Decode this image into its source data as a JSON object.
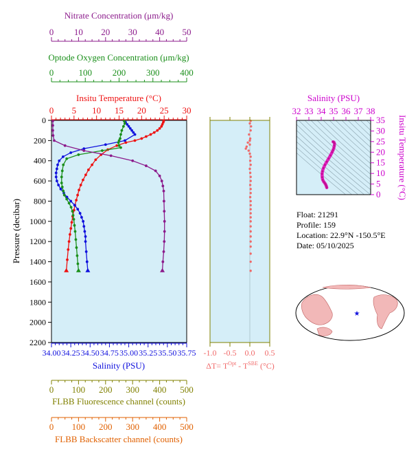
{
  "colors": {
    "nitrate": "#8b1a8b",
    "oxygen": "#1a8f1a",
    "temperature": "#ee1111",
    "salinity": "#1010dd",
    "fluorescence": "#808000",
    "backscatter": "#e06000",
    "delta_t": "#f06a6a",
    "ts_trace": "#e020c0",
    "ts_axis": "#cc00cc",
    "panel_bg": "#d5eef8",
    "map_land": "#f2b8b8"
  },
  "info": {
    "float": "Float:  21291",
    "profile": "Profile:  159",
    "location": "Location:  22.9°N  -150.5°E",
    "date": "Date:  05/10/2025"
  },
  "chart_data": [
    {
      "type": "line",
      "panel": "main profile",
      "ylabel": "Pressure (decibar)",
      "ylim": [
        2200,
        0
      ],
      "yticks": [
        0,
        200,
        400,
        600,
        800,
        1000,
        1200,
        1400,
        1600,
        1800,
        2000,
        2200
      ],
      "axes": {
        "temperature": {
          "label": "Insitu Temperature (°C)",
          "range": [
            0,
            30
          ],
          "ticks": [
            0,
            5,
            10,
            15,
            20,
            25,
            30
          ]
        },
        "salinity": {
          "label": "Salinity (PSU)",
          "range": [
            34.0,
            35.75
          ],
          "ticks": [
            "34.00",
            "34.25",
            "34.50",
            "34.75",
            "35.00",
            "35.25",
            "35.50",
            "35.75"
          ]
        },
        "oxygen": {
          "label": "Optode Oxygen Concentration (μm/kg)",
          "range": [
            0,
            400
          ],
          "ticks": [
            0,
            100,
            200,
            300,
            400
          ]
        },
        "nitrate": {
          "label": "Nitrate Concentration (μm/kg)",
          "range": [
            0,
            50
          ],
          "ticks": [
            0,
            10,
            20,
            30,
            40,
            50
          ]
        },
        "fluorescence": {
          "label": "FLBB Fluorescence channel (counts)",
          "range": [
            0,
            500
          ],
          "ticks": [
            0,
            100,
            200,
            300,
            400,
            500
          ]
        },
        "backscatter": {
          "label": "FLBB Backscatter channel (counts)",
          "range": [
            0,
            500
          ],
          "ticks": [
            0,
            100,
            200,
            300,
            400,
            500
          ]
        }
      },
      "series": [
        {
          "name": "temperature",
          "axis": "temperature",
          "x": [
            24.9,
            24.8,
            24.6,
            24.4,
            24.0,
            23.5,
            22.8,
            22.0,
            21.0,
            20.0,
            18.5,
            16.5,
            14.5,
            12.5,
            11.0,
            9.8,
            9.0,
            8.2,
            7.6,
            7.0,
            6.5,
            6.1,
            5.8,
            5.5,
            5.2,
            5.0,
            4.7,
            4.5,
            4.3,
            4.1,
            3.9,
            3.7,
            3.5,
            3.3
          ],
          "y": [
            5,
            20,
            40,
            60,
            80,
            100,
            120,
            140,
            160,
            180,
            200,
            220,
            250,
            290,
            340,
            390,
            440,
            490,
            540,
            590,
            640,
            690,
            740,
            790,
            840,
            890,
            950,
            1010,
            1070,
            1130,
            1200,
            1280,
            1380,
            1490
          ]
        },
        {
          "name": "salinity",
          "axis": "salinity",
          "x": [
            34.94,
            34.96,
            34.98,
            35.0,
            35.02,
            35.04,
            35.06,
            35.08,
            34.95,
            34.7,
            34.42,
            34.25,
            34.15,
            34.1,
            34.08,
            34.07,
            34.06,
            34.06,
            34.07,
            34.09,
            34.12,
            34.16,
            34.2,
            34.25,
            34.3,
            34.34,
            34.37,
            34.39,
            34.41,
            34.42,
            34.43,
            34.44,
            34.44,
            34.45,
            34.46,
            34.47
          ],
          "y": [
            5,
            20,
            40,
            60,
            80,
            100,
            120,
            140,
            200,
            240,
            280,
            320,
            360,
            400,
            440,
            480,
            520,
            560,
            600,
            640,
            680,
            720,
            760,
            800,
            840,
            880,
            920,
            960,
            1000,
            1050,
            1100,
            1150,
            1200,
            1300,
            1400,
            1490
          ]
        },
        {
          "name": "oxygen",
          "axis": "oxygen",
          "x": [
            215,
            217,
            213,
            208,
            205,
            203,
            200,
            198,
            200,
            205,
            150,
            80,
            45,
            35,
            32,
            30,
            30,
            32,
            35,
            38,
            45,
            52,
            58,
            62,
            64,
            66,
            68,
            70,
            72,
            74,
            76,
            78,
            80
          ],
          "y": [
            5,
            30,
            60,
            100,
            140,
            180,
            200,
            220,
            250,
            270,
            300,
            340,
            380,
            440,
            500,
            560,
            620,
            660,
            700,
            740,
            780,
            820,
            860,
            900,
            940,
            980,
            1040,
            1100,
            1180,
            1260,
            1340,
            1420,
            1490
          ]
        },
        {
          "name": "nitrate",
          "axis": "nitrate",
          "x": [
            0.5,
            0.5,
            0.5,
            0.6,
            1.0,
            5.0,
            12.0,
            22.0,
            30.0,
            35.0,
            38.5,
            40.0,
            40.8,
            41.2,
            41.5,
            41.6,
            41.7,
            41.8,
            41.8,
            41.7,
            41.5,
            41.2,
            41.0
          ],
          "y": [
            5,
            50,
            100,
            150,
            200,
            250,
            300,
            350,
            400,
            450,
            500,
            550,
            600,
            650,
            700,
            800,
            900,
            1000,
            1100,
            1200,
            1300,
            1400,
            1490
          ]
        }
      ]
    },
    {
      "type": "scatter",
      "panel": "delta temperature",
      "xlabel": "ΔT= T^Opt - T^SBE (°C)",
      "xlim": [
        -1.0,
        0.5
      ],
      "xticks": [
        "-1.0",
        "-0.5",
        "0.0",
        "0.5"
      ],
      "ylim": [
        2200,
        0
      ],
      "x": [
        0.02,
        0.0,
        0.03,
        0.02,
        -0.02,
        0.01,
        0.0,
        -0.05,
        0.0,
        -0.08,
        -0.1,
        -0.03,
        0.0,
        0.02,
        0.01,
        0.02,
        0.0,
        0.01,
        0.02,
        0.02,
        0.01,
        0.02,
        0.02,
        0.01,
        0.02,
        0.02,
        0.02,
        0.02,
        0.02,
        0.02,
        0.02,
        0.02,
        0.02,
        0.02,
        0.02,
        0.02,
        0.02,
        0.02
      ],
      "y": [
        5,
        30,
        60,
        100,
        140,
        180,
        200,
        220,
        240,
        260,
        280,
        300,
        330,
        360,
        400,
        440,
        480,
        520,
        560,
        600,
        640,
        680,
        720,
        760,
        800,
        840,
        880,
        920,
        960,
        1000,
        1050,
        1100,
        1150,
        1200,
        1250,
        1320,
        1400,
        1490
      ]
    },
    {
      "type": "scatter",
      "panel": "T-S diagram",
      "xlabel": "Salinity (PSU)",
      "ylabel": "Insitu Temperature (°C)",
      "xlim": [
        32,
        38
      ],
      "ylim": [
        0,
        35
      ],
      "xticks": [
        32,
        33,
        34,
        35,
        36,
        37,
        38
      ],
      "yticks": [
        0,
        5,
        10,
        15,
        20,
        25,
        30,
        35
      ],
      "x": [
        34.45,
        34.43,
        34.41,
        34.38,
        34.34,
        34.28,
        34.2,
        34.12,
        34.08,
        34.07,
        34.1,
        34.18,
        34.3,
        34.45,
        34.6,
        34.75,
        34.88,
        34.96,
        35.02,
        35.06,
        35.08,
        35.04,
        35.0,
        34.96
      ],
      "y": [
        3.3,
        3.7,
        4.1,
        4.5,
        5.0,
        5.5,
        6.1,
        7.0,
        8.2,
        9.8,
        11.0,
        12.5,
        14.0,
        15.5,
        17.0,
        18.5,
        20.0,
        21.0,
        22.0,
        23.0,
        24.0,
        24.6,
        24.8,
        24.9
      ]
    }
  ]
}
